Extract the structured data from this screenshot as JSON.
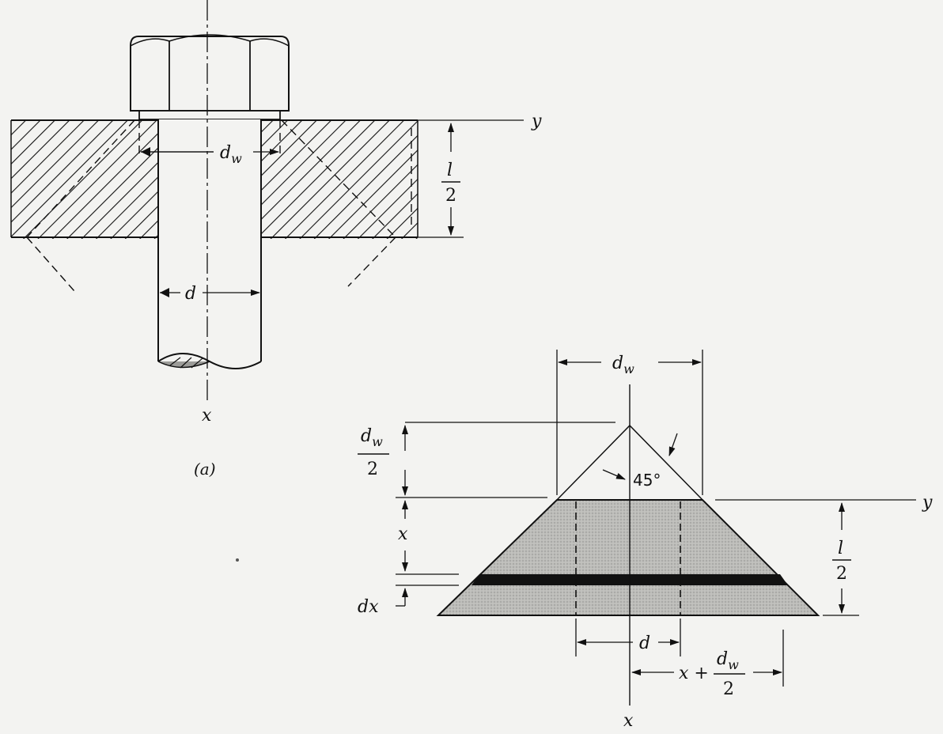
{
  "figure": {
    "bolt_panel": {
      "caption": "(a)",
      "axis_x": "x",
      "axis_y": "y",
      "washer_dia": {
        "main": "d",
        "sub": "w"
      },
      "bolt_dia": "d",
      "half_length": {
        "num": "l",
        "den": "2"
      }
    },
    "frustum_panel": {
      "axis_x": "x",
      "axis_y": "y",
      "washer_dia": {
        "main": "d",
        "sub": "w"
      },
      "cone_angle": "45°",
      "apex_height": {
        "num_main": "d",
        "num_sub": "w",
        "den": "2"
      },
      "x_dim": "x",
      "dx_dim": "dx",
      "bolt_dia": "d",
      "half_length": {
        "num": "l",
        "den": "2"
      },
      "radius": {
        "prefix": "x +",
        "num_main": "d",
        "num_sub": "w",
        "den": "2"
      }
    }
  },
  "colors": {
    "ink": "#111111",
    "paper": "#f3f3f1",
    "shade": "#b9b9b6"
  }
}
